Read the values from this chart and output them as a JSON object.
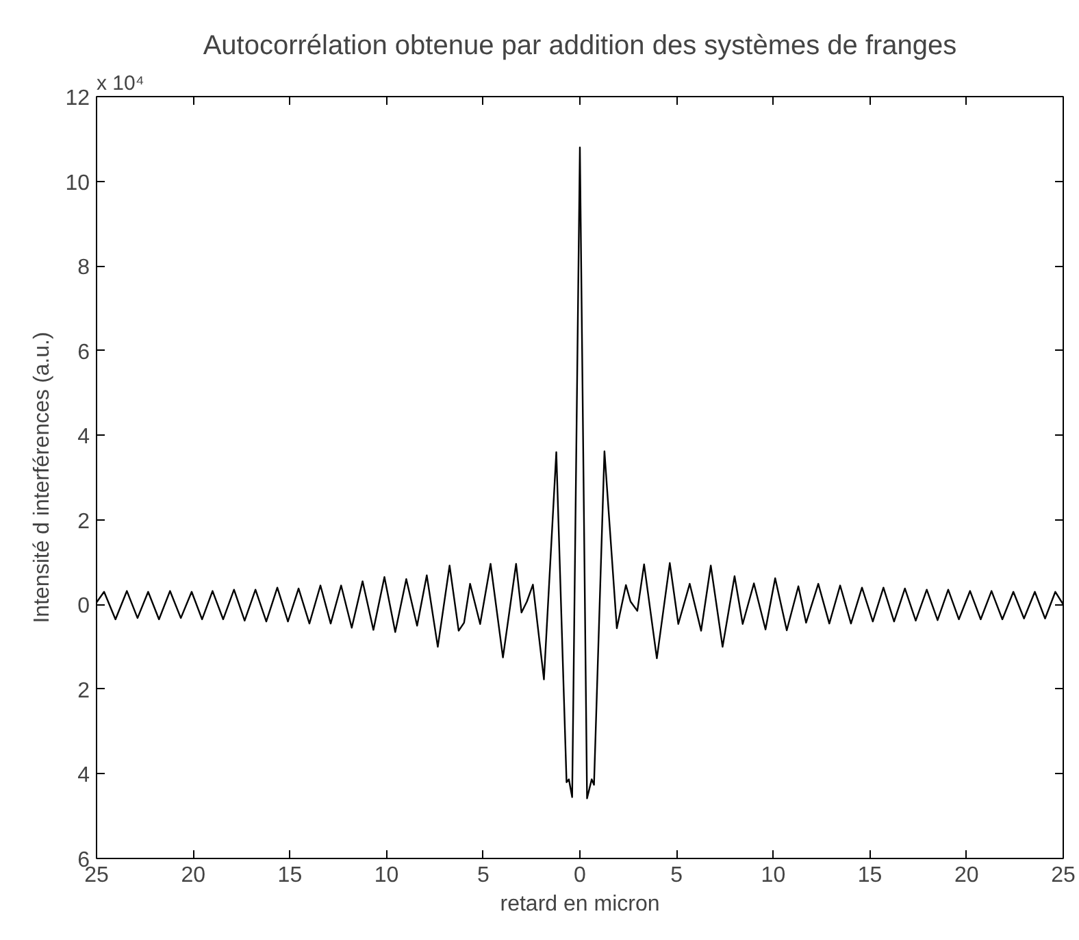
{
  "chart_data": {
    "type": "line",
    "title": "Autocorrélation obtenue par addition des systèmes de franges",
    "xlabel": "retard en micron",
    "ylabel": "Intensité d interférences (a.u.)",
    "annotations": [
      "x 10⁴"
    ],
    "x": [
      -25,
      -24.61,
      -24.02,
      -23.43,
      -22.88,
      -22.33,
      -21.77,
      -21.2,
      -20.64,
      -20.08,
      -19.54,
      -19.0,
      -18.45,
      -17.89,
      -17.34,
      -16.78,
      -16.22,
      -15.65,
      -15.1,
      -14.55,
      -13.99,
      -13.42,
      -12.89,
      -12.35,
      -11.8,
      -11.24,
      -10.68,
      -10.11,
      -9.55,
      -8.98,
      -8.42,
      -7.92,
      -7.35,
      -6.74,
      -6.27,
      -5.99,
      -5.68,
      -5.16,
      -4.62,
      -3.98,
      -3.3,
      -3.02,
      -2.74,
      -2.43,
      -1.86,
      -1.22,
      -0.69,
      -0.57,
      -0.4,
      0,
      0.37,
      0.61,
      0.73,
      1.27,
      1.91,
      2.38,
      2.62,
      2.97,
      3.32,
      3.98,
      4.65,
      5.09,
      5.68,
      6.27,
      6.77,
      7.38,
      8.0,
      8.42,
      9.0,
      9.6,
      10.1,
      10.7,
      11.3,
      11.7,
      12.33,
      12.9,
      13.46,
      14.02,
      14.59,
      15.15,
      15.7,
      16.25,
      16.81,
      17.37,
      17.94,
      18.5,
      19.05,
      19.6,
      20.18,
      20.73,
      21.29,
      21.85,
      22.42,
      22.97,
      23.53,
      24.06,
      24.59,
      25
    ],
    "series": [
      {
        "color": "#000000",
        "values": [
          0.05,
          0.3,
          -0.35,
          0.32,
          -0.32,
          0.3,
          -0.35,
          0.32,
          -0.32,
          0.3,
          -0.35,
          0.32,
          -0.35,
          0.35,
          -0.38,
          0.35,
          -0.4,
          0.4,
          -0.4,
          0.38,
          -0.45,
          0.45,
          -0.45,
          0.45,
          -0.55,
          0.55,
          -0.6,
          0.65,
          -0.65,
          0.6,
          -0.5,
          0.69,
          -1.0,
          0.92,
          -0.62,
          -0.43,
          0.49,
          -0.46,
          0.96,
          -1.25,
          0.96,
          -0.19,
          0.07,
          0.47,
          -1.77,
          3.6,
          -4.2,
          -4.13,
          -4.55,
          10.8,
          -4.58,
          -4.13,
          -4.26,
          3.62,
          -0.56,
          0.46,
          0.07,
          -0.15,
          0.95,
          -1.27,
          0.98,
          -0.46,
          0.49,
          -0.62,
          0.92,
          -1.0,
          0.67,
          -0.46,
          0.5,
          -0.59,
          0.62,
          -0.61,
          0.43,
          -0.43,
          0.49,
          -0.45,
          0.45,
          -0.45,
          0.4,
          -0.4,
          0.4,
          -0.4,
          0.38,
          -0.38,
          0.35,
          -0.37,
          0.35,
          -0.35,
          0.32,
          -0.35,
          0.32,
          -0.35,
          0.3,
          -0.33,
          0.3,
          -0.33,
          0.3,
          0.0
        ]
      }
    ],
    "xlim": [
      -25,
      25
    ],
    "ylim": [
      -6,
      12
    ],
    "xticks": [
      {
        "value": -25,
        "label": "25"
      },
      {
        "value": -20,
        "label": "20"
      },
      {
        "value": -15,
        "label": "15"
      },
      {
        "value": -10,
        "label": "10"
      },
      {
        "value": -5,
        "label": "5"
      },
      0,
      5,
      10,
      15,
      20,
      25
    ],
    "yticks": [
      {
        "value": -6,
        "label": "6"
      },
      {
        "value": -4,
        "label": "4"
      },
      {
        "value": -2,
        "label": "2"
      },
      0,
      2,
      4,
      6,
      8,
      10,
      12
    ],
    "grid": false,
    "marker": "none",
    "line_style": "solid"
  }
}
